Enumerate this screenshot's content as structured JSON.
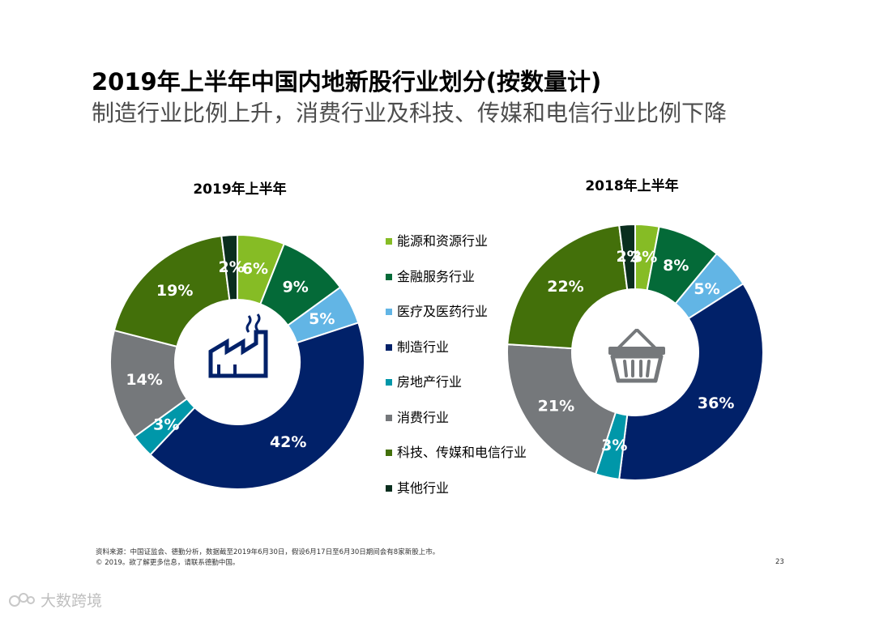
{
  "page": {
    "title": "2019年上半年中国内地新股行业划分(按数量计)",
    "subtitle": "制造行业比例上升，消费行业及科技、传媒和电信行业比例下降",
    "footer_source": "资料来源：中国证监会、德勤分析，数据截至2019年6月30日，假设6月17日至6月30日期间会有8家新股上市。",
    "footer_copyright": "© 2019。欲了解更多信息，请联系德勤中国。",
    "page_number": "23",
    "watermark": "大数跨境"
  },
  "colors": {
    "能源和资源行业": "#86bc25",
    "金融服务行业": "#046a38",
    "医疗及医药行业": "#62b5e5",
    "制造行业": "#012169",
    "房地产行业": "#0097a9",
    "消费行业": "#75787b",
    "科技、传媒和电信行业": "#43700a",
    "其他行业": "#0a2e1e"
  },
  "legend": {
    "items": [
      "能源和资源行业",
      "金融服务行业",
      "医疗及医药行业",
      "制造行业",
      "房地产行业",
      "消费行业",
      "科技、传媒和电信行业",
      "其他行业"
    ]
  },
  "chart_data": [
    {
      "type": "pie",
      "title": "2019年上半年",
      "center_icon": "factory-icon",
      "categories": [
        "能源和资源行业",
        "金融服务行业",
        "医疗及医药行业",
        "制造行业",
        "房地产行业",
        "消费行业",
        "科技、传媒和电信行业",
        "其他行业"
      ],
      "values": [
        6,
        9,
        5,
        42,
        3,
        14,
        19,
        2
      ],
      "labels": [
        "6%",
        "9%",
        "5%",
        "42%",
        "3%",
        "14%",
        "19%",
        "2%"
      ]
    },
    {
      "type": "pie",
      "title": "2018年上半年",
      "center_icon": "shopping-basket-icon",
      "categories": [
        "能源和资源行业",
        "金融服务行业",
        "医疗及医药行业",
        "制造行业",
        "房地产行业",
        "消费行业",
        "科技、传媒和电信行业",
        "其他行业"
      ],
      "values": [
        3,
        8,
        5,
        36,
        3,
        21,
        22,
        2
      ],
      "labels": [
        "3%",
        "8%",
        "5%",
        "36%",
        "3%",
        "21%",
        "22%",
        "2%"
      ]
    }
  ]
}
